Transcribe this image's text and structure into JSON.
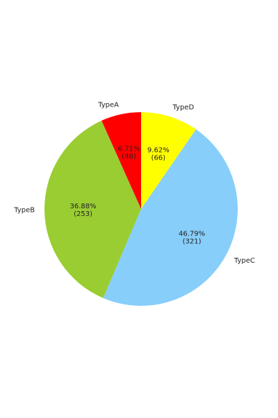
{
  "chart_data": {
    "type": "pie",
    "title": "",
    "start_angle_deg": 90,
    "direction": "clockwise",
    "slices": [
      {
        "label": "TypeD",
        "value": 66,
        "percent_text": "9.62%",
        "count_text": "(66)",
        "color": "#ffff00"
      },
      {
        "label": "TypeC",
        "value": 321,
        "percent_text": "46.79%",
        "count_text": "(321)",
        "color": "#87cefa"
      },
      {
        "label": "TypeB",
        "value": 253,
        "percent_text": "36.88%",
        "count_text": "(253)",
        "color": "#9acd32"
      },
      {
        "label": "TypeA",
        "value": 46,
        "percent_text": "6.71%",
        "count_text": "(46)",
        "color": "#ff0000"
      }
    ]
  }
}
